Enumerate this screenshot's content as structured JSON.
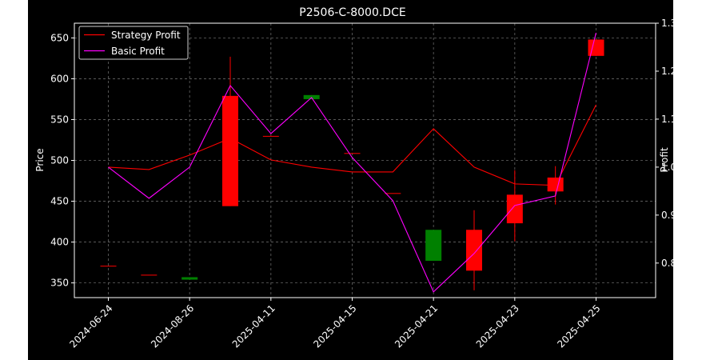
{
  "chart_data": {
    "type": "candlestick",
    "title": "P2506-C-8000.DCE",
    "ylabel_left": "Price",
    "ylabel_right": "Profit",
    "xlabel": "",
    "left_ylim": [
      332,
      668
    ],
    "right_ylim": [
      0.728,
      1.3
    ],
    "left_yticks": [
      350,
      400,
      450,
      500,
      550,
      600,
      650
    ],
    "right_yticks": [
      0.8,
      0.9,
      1.0,
      1.1,
      1.2,
      1.3
    ],
    "grid": true,
    "legend_position": "top-left",
    "x_tick_labels": [
      "2024-06-24",
      "2024-08-26",
      "2025-04-11",
      "2025-04-15",
      "2025-04-21",
      "2025-04-23",
      "2025-04-25"
    ],
    "x_tick_indices": [
      0,
      2,
      4,
      6,
      8,
      10,
      12
    ],
    "candles": [
      {
        "i": 0,
        "open": 371,
        "close": 371,
        "high": 371,
        "low": 371
      },
      {
        "i": 1,
        "open": 360,
        "close": 360,
        "high": 360,
        "low": 360
      },
      {
        "i": 2,
        "open": 354,
        "close": 357,
        "high": 357,
        "low": 354
      },
      {
        "i": 3,
        "open": 579,
        "close": 444,
        "high": 627,
        "low": 444
      },
      {
        "i": 4,
        "open": 530,
        "close": 530,
        "high": 530,
        "low": 530
      },
      {
        "i": 5,
        "open": 575,
        "close": 580,
        "high": 580,
        "low": 575
      },
      {
        "i": 6,
        "open": 509,
        "close": 509,
        "high": 509,
        "low": 509
      },
      {
        "i": 7,
        "open": 460,
        "close": 460,
        "high": 460,
        "low": 460
      },
      {
        "i": 8,
        "open": 377,
        "close": 415,
        "high": 415,
        "low": 377
      },
      {
        "i": 9,
        "open": 415,
        "close": 365,
        "high": 439,
        "low": 341
      },
      {
        "i": 10,
        "open": 458,
        "close": 423,
        "high": 488,
        "low": 401
      },
      {
        "i": 11,
        "open": 479,
        "close": 462,
        "high": 493,
        "low": 446
      },
      {
        "i": 12,
        "open": 648,
        "close": 628,
        "high": 648,
        "low": 628
      }
    ],
    "series": [
      {
        "name": "Strategy Profit",
        "color": "#ff0000",
        "values": [
          1.0,
          0.995,
          1.025,
          1.06,
          1.015,
          1.0,
          0.99,
          0.99,
          1.08,
          1.0,
          0.965,
          0.962,
          1.13
        ]
      },
      {
        "name": "Basic Profit",
        "color": "#ff00ff",
        "values": [
          1.0,
          0.935,
          1.0,
          1.17,
          1.07,
          1.145,
          1.02,
          0.93,
          0.74,
          0.82,
          0.92,
          0.94,
          1.28
        ]
      }
    ],
    "colors": {
      "up": "#008000",
      "down": "#ff0000",
      "background": "#000000",
      "grid": "#666666"
    }
  }
}
